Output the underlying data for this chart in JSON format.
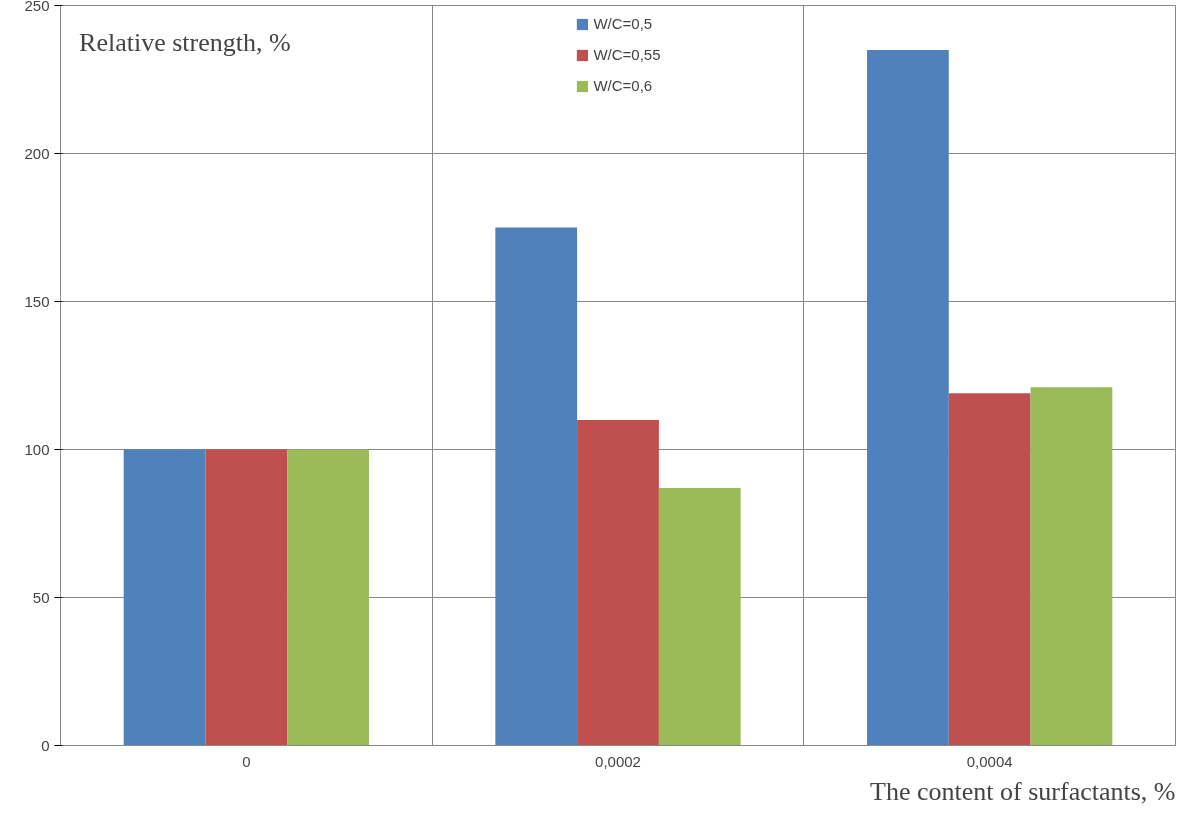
{
  "chart_data": {
    "type": "bar",
    "xlabel": "The content of surfactants, %",
    "ylabel": "Relative strength, %",
    "categories": [
      "0",
      "0,0002",
      "0,0004"
    ],
    "series": [
      {
        "name": "W/C=0,5",
        "color": "#4f81bd",
        "values": [
          100,
          175,
          235
        ]
      },
      {
        "name": "W/C=0,55",
        "color": "#c0504d",
        "values": [
          100,
          110,
          119
        ]
      },
      {
        "name": "W/C=0,6",
        "color": "#9bbb59",
        "values": [
          100,
          87,
          121
        ]
      }
    ],
    "ylim": [
      0,
      250
    ],
    "yticks": [
      0,
      50,
      100,
      150,
      200,
      250
    ],
    "grid": true,
    "legend": "top"
  }
}
